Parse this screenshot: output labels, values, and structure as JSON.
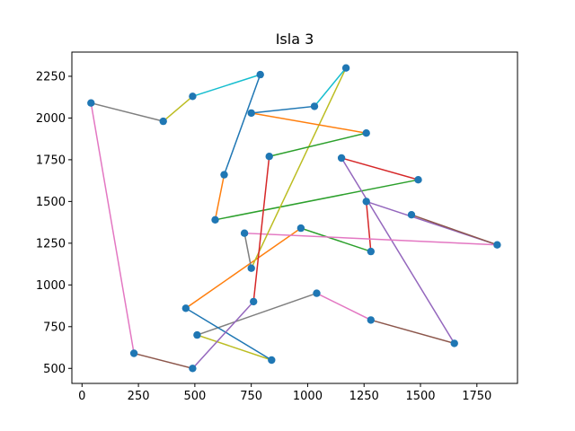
{
  "chart_data": {
    "type": "scatter",
    "title": "Isla 3",
    "xlabel": "",
    "ylabel": "",
    "xlim": [
      -45,
      1930
    ],
    "ylim": [
      410,
      2395
    ],
    "xticks": [
      0,
      250,
      500,
      750,
      1000,
      1250,
      1500,
      1750
    ],
    "yticks": [
      500,
      750,
      1000,
      1250,
      1500,
      1750,
      2000,
      2250
    ],
    "grid": false,
    "legend": "none",
    "marker_color": "#1f77b4",
    "points": [
      [
        40,
        2090
      ],
      [
        360,
        1980
      ],
      [
        490,
        2130
      ],
      [
        790,
        2260
      ],
      [
        750,
        2030
      ],
      [
        1030,
        2070
      ],
      [
        1170,
        2300
      ],
      [
        1260,
        1910
      ],
      [
        830,
        1770
      ],
      [
        630,
        1660
      ],
      [
        590,
        1390
      ],
      [
        1490,
        1630
      ],
      [
        1150,
        1760
      ],
      [
        1260,
        1500
      ],
      [
        1460,
        1420
      ],
      [
        1840,
        1240
      ],
      [
        720,
        1310
      ],
      [
        750,
        1100
      ],
      [
        970,
        1340
      ],
      [
        1280,
        1200
      ],
      [
        760,
        900
      ],
      [
        460,
        860
      ],
      [
        1040,
        950
      ],
      [
        1280,
        790
      ],
      [
        1650,
        650
      ],
      [
        510,
        700
      ],
      [
        840,
        550
      ],
      [
        490,
        500
      ],
      [
        230,
        590
      ]
    ],
    "segments": [
      {
        "from": [
          40,
          2090
        ],
        "to": [
          360,
          1980
        ],
        "color": "#7f7f7f"
      },
      {
        "from": [
          360,
          1980
        ],
        "to": [
          490,
          2130
        ],
        "color": "#bcbd22"
      },
      {
        "from": [
          490,
          2130
        ],
        "to": [
          790,
          2260
        ],
        "color": "#17becf"
      },
      {
        "from": [
          790,
          2260
        ],
        "to": [
          630,
          1660
        ],
        "color": "#1f77b4"
      },
      {
        "from": [
          630,
          1660
        ],
        "to": [
          590,
          1390
        ],
        "color": "#ff7f0e"
      },
      {
        "from": [
          590,
          1390
        ],
        "to": [
          1490,
          1630
        ],
        "color": "#2ca02c"
      },
      {
        "from": [
          1490,
          1630
        ],
        "to": [
          1150,
          1760
        ],
        "color": "#d62728"
      },
      {
        "from": [
          1150,
          1760
        ],
        "to": [
          1650,
          650
        ],
        "color": "#9467bd"
      },
      {
        "from": [
          1650,
          650
        ],
        "to": [
          1280,
          790
        ],
        "color": "#8c564b"
      },
      {
        "from": [
          1280,
          790
        ],
        "to": [
          1040,
          950
        ],
        "color": "#e377c2"
      },
      {
        "from": [
          1040,
          950
        ],
        "to": [
          510,
          700
        ],
        "color": "#7f7f7f"
      },
      {
        "from": [
          510,
          700
        ],
        "to": [
          840,
          550
        ],
        "color": "#bcbd22"
      },
      {
        "from": [
          840,
          550
        ],
        "to": [
          460,
          860
        ],
        "color": "#1f77b4"
      },
      {
        "from": [
          460,
          860
        ],
        "to": [
          970,
          1340
        ],
        "color": "#ff7f0e"
      },
      {
        "from": [
          970,
          1340
        ],
        "to": [
          1280,
          1200
        ],
        "color": "#2ca02c"
      },
      {
        "from": [
          1280,
          1200
        ],
        "to": [
          1260,
          1500
        ],
        "color": "#d62728"
      },
      {
        "from": [
          1260,
          1500
        ],
        "to": [
          1840,
          1240
        ],
        "color": "#9467bd"
      },
      {
        "from": [
          1840,
          1240
        ],
        "to": [
          1460,
          1420
        ],
        "color": "#8c564b"
      },
      {
        "from": [
          720,
          1310
        ],
        "to": [
          1840,
          1240
        ],
        "color": "#e377c2"
      },
      {
        "from": [
          720,
          1310
        ],
        "to": [
          750,
          1100
        ],
        "color": "#7f7f7f"
      },
      {
        "from": [
          750,
          1100
        ],
        "to": [
          1170,
          2300
        ],
        "color": "#bcbd22"
      },
      {
        "from": [
          1170,
          2300
        ],
        "to": [
          1030,
          2070
        ],
        "color": "#17becf"
      },
      {
        "from": [
          1030,
          2070
        ],
        "to": [
          750,
          2030
        ],
        "color": "#1f77b4"
      },
      {
        "from": [
          750,
          2030
        ],
        "to": [
          1260,
          1910
        ],
        "color": "#ff7f0e"
      },
      {
        "from": [
          1260,
          1910
        ],
        "to": [
          830,
          1770
        ],
        "color": "#2ca02c"
      },
      {
        "from": [
          830,
          1770
        ],
        "to": [
          760,
          900
        ],
        "color": "#d62728"
      },
      {
        "from": [
          760,
          900
        ],
        "to": [
          490,
          500
        ],
        "color": "#9467bd"
      },
      {
        "from": [
          490,
          500
        ],
        "to": [
          230,
          590
        ],
        "color": "#8c564b"
      },
      {
        "from": [
          230,
          590
        ],
        "to": [
          40,
          2090
        ],
        "color": "#e377c2"
      }
    ]
  }
}
